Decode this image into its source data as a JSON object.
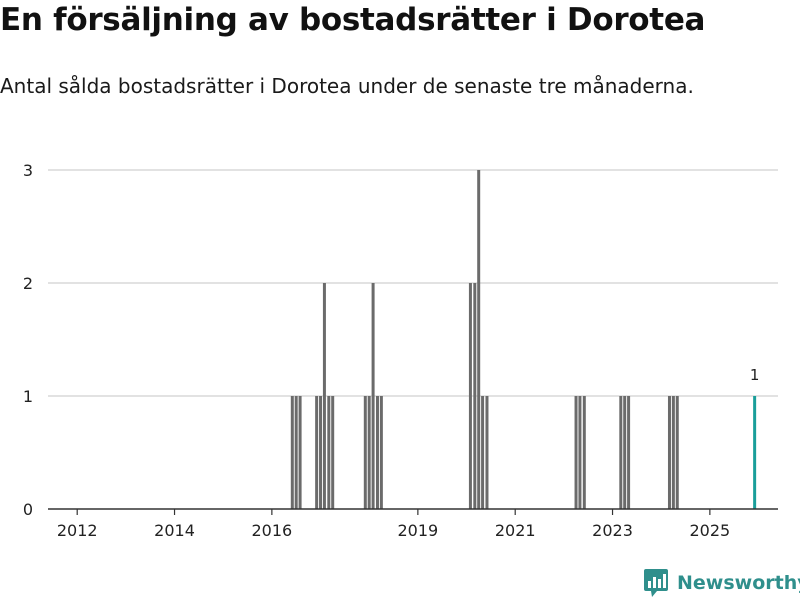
{
  "title": "En försäljning av bostadsrätter i Dorotea",
  "subtitle": "Antal sålda bostadsrätter i Dorotea under de senaste tre månaderna.",
  "brand": {
    "name": "Newsworthy"
  },
  "colors": {
    "bar": "#6b6b6b",
    "highlight": "#199e9a",
    "grid": "#d9d9d9",
    "axis": "#333333"
  },
  "chart_data": {
    "type": "bar",
    "title": "En försäljning av bostadsrätter i Dorotea",
    "xlabel": "",
    "ylabel": "",
    "ylim": [
      0,
      3
    ],
    "yticks": [
      "0",
      "1",
      "2",
      "3"
    ],
    "xticks": [
      {
        "year": 2012,
        "label": "2012"
      },
      {
        "year": 2014,
        "label": "2014"
      },
      {
        "year": 2016,
        "label": "2016"
      },
      {
        "year": 2019,
        "label": "2019"
      },
      {
        "year": 2021,
        "label": "2021"
      },
      {
        "year": 2023,
        "label": "2023"
      },
      {
        "year": 2025,
        "label": "2025"
      }
    ],
    "x_range": [
      2011.4,
      2026.4
    ],
    "bars": [
      {
        "t": 2016.42,
        "value": 1
      },
      {
        "t": 2016.5,
        "value": 1
      },
      {
        "t": 2016.58,
        "value": 1
      },
      {
        "t": 2016.92,
        "value": 1
      },
      {
        "t": 2017.0,
        "value": 1
      },
      {
        "t": 2017.08,
        "value": 2
      },
      {
        "t": 2017.17,
        "value": 1
      },
      {
        "t": 2017.25,
        "value": 1
      },
      {
        "t": 2017.92,
        "value": 1
      },
      {
        "t": 2018.0,
        "value": 1
      },
      {
        "t": 2018.08,
        "value": 2
      },
      {
        "t": 2018.17,
        "value": 1
      },
      {
        "t": 2018.25,
        "value": 1
      },
      {
        "t": 2020.08,
        "value": 2
      },
      {
        "t": 2020.17,
        "value": 2
      },
      {
        "t": 2020.25,
        "value": 3
      },
      {
        "t": 2020.33,
        "value": 1
      },
      {
        "t": 2020.42,
        "value": 1
      },
      {
        "t": 2022.25,
        "value": 1
      },
      {
        "t": 2022.33,
        "value": 1
      },
      {
        "t": 2022.42,
        "value": 1
      },
      {
        "t": 2023.17,
        "value": 1
      },
      {
        "t": 2023.25,
        "value": 1
      },
      {
        "t": 2023.33,
        "value": 1
      },
      {
        "t": 2024.17,
        "value": 1
      },
      {
        "t": 2024.25,
        "value": 1
      },
      {
        "t": 2024.33,
        "value": 1
      }
    ],
    "highlight": {
      "t": 2025.92,
      "value": 1,
      "label": "1"
    }
  }
}
